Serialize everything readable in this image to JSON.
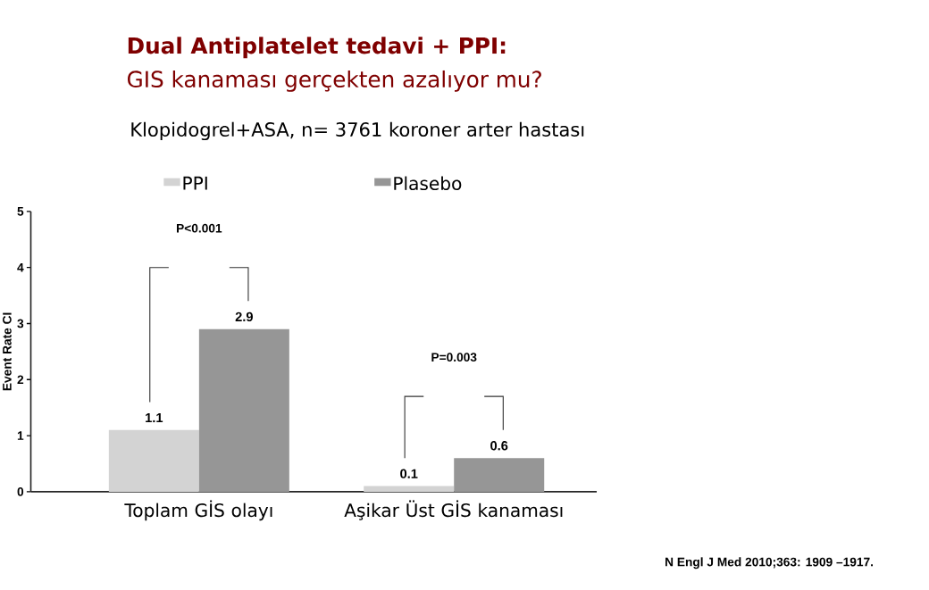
{
  "chart_data": {
    "type": "bar",
    "title": "**Dual Antiplatelet tedavi + PPI**:",
    "subtitle": "GIS kanaması gerçekten azalıyor mu?",
    "ylabel": "Event Rate CI",
    "categories": [
      "Toplam GİS olayı",
      "Aşikar Üst GİS kanaması"
    ],
    "series": [
      {
        "name": "PPI",
        "color": "#d3d3d3",
        "values": [
          1.1,
          0.1
        ]
      },
      {
        "name": "Plasebo",
        "color": "#969696",
        "values": [
          2.9,
          0.6
        ]
      }
    ],
    "ylim": [
      0,
      5
    ],
    "yticks": [
      0,
      1,
      2,
      3,
      4,
      5
    ],
    "grid": false,
    "legend": "top",
    "data_labels": true,
    "annotations": [
      "Klopidogrel+ASA, n= 3761 koroner arter hastası",
      "P<0.001",
      "P=0.003",
      "N Engl J Med 2010;363: 1909 –1917."
    ]
  }
}
